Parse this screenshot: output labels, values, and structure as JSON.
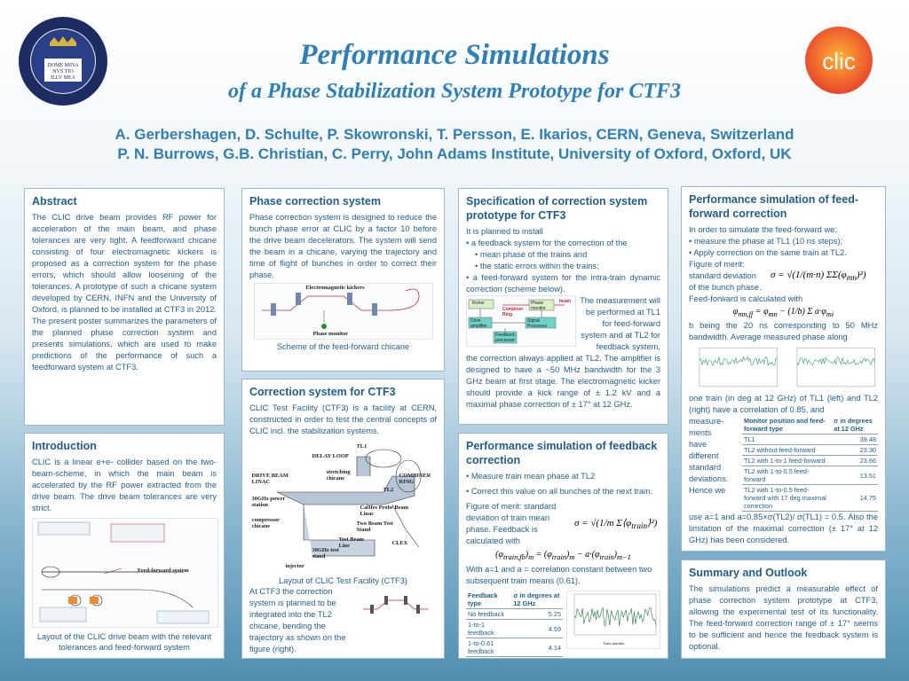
{
  "header": {
    "title": "Performance Simulations",
    "subtitle": "of a Phase Stabilization System Prototype for CTF3",
    "authors_line1": "A. Gerbershagen, D. Schulte, P. Skowronski, T. Persson, E. Ikarios, CERN, Geneva, Switzerland",
    "authors_line2": "P. N. Burrows, G.B. Christian, C. Perry, John Adams Institute, University of Oxford, Oxford, UK",
    "logo_text": "clic",
    "seal_text": "DOMI NVS ILLV MINA TIO MEA"
  },
  "abstract": {
    "heading": "Abstract",
    "text": "The CLIC drive beam provides RF power for acceleration of the main beam, and phase tolerances are very tight. A feedforward chicane consisting of four electromagnetic kickers is proposed as a correction system for the phase errors, which should allow loosening of the tolerances. A prototype of such a chicane system developed by CERN, INFN and the University of Oxford, is planned to be installed at CTF3 in 2012. The present poster summarizes the parameters of the planned phase correction system and presents simulations, which are used to make predictions of the performance of such a feedforward system at CTF3."
  },
  "introduction": {
    "heading": "Introduction",
    "text": "CLIC is a linear e+e- collider based on the two-beam-scheme, in which the main beam is accelerated by the RF power extracted from the drive beam. The drive beam tolerances are very strict.",
    "figure_label": "Feed-forward system",
    "caption": "Layout of the CLIC drive beam with the relevant tolerances and feed-forward system"
  },
  "phase_correction": {
    "heading": "Phase correction system",
    "text": "Phase correction system is designed to reduce the bunch phase error at CLIC by a factor 10 before the drive beam decelerators. The system will send the beam in a chicane, varying the trajectory and time of flight of bunches in order to correct their phase.",
    "fig_label_kickers": "Electromagnetic kickers",
    "fig_label_monitor": "Phase monitor",
    "caption": "Scheme of the feed-forward chicane"
  },
  "correction_ctf3": {
    "heading": "Correction system for CTF3",
    "text": "CLIC Test Facility (CTF3) is a facility at CERN, constructed in order to test the central concepts of CLIC incl. the stabilization systems.",
    "caption": "Layout of CLIC Test Facility (CTF3)",
    "text2": "At CTF3 the correction system is planned to be integrated into the TL2 chicane, bending the trajectory as shown on the figure (right).",
    "fig_labels": [
      "TL1",
      "DELAY LOOP",
      "DRIVE BEAM LINAC",
      "30GHz power station",
      "compressor chicane",
      "TL2",
      "COMBINER RING",
      "CalIfes Probe Beam Linac",
      "Two Beam Test Stand",
      "Test Beam Line",
      "30GHz test stand",
      "CLEX",
      "injector",
      "stretching chicane"
    ]
  },
  "specification": {
    "heading": "Specification of correction system prototype for CTF3",
    "intro": "It is planned to install",
    "b1": "• a feedback system for the correction of the",
    "b1a": "• mean phase of the trains and",
    "b1b": "• the static errors within the trains;",
    "b2": "• a feed-forward system for the intra-train dynamic correction (scheme below).",
    "side_text": "The measurement will be performed at TL1 for feed-forward system and at TL2 for feedback system,",
    "text": "the correction always applied at TL2. The amplifier is designed to have a ~50 MHz bandwidth for the 3 GHz beam at first stage. The electromagnetic kicker should provide a kick range of ± 1.2 kV and a maximal phase correction of ± 17° at 12 GHz.",
    "diagram": {
      "kicker": "Kicker",
      "phase_monitor": "Phase monitor",
      "ring": "Combiner Ring",
      "beam": "beam",
      "amp": "Drive amplifier",
      "signal": "Signal Processor",
      "fb": "Feedback processor"
    }
  },
  "feedback": {
    "heading": "Performance simulation of feedback correction",
    "b1": "• Measure train mean phase at TL2",
    "b2": "• Correct this value on all bunches of the next train.",
    "fom": "Figure of merit: standard deviation of train mean phase. Feedback is calculated with",
    "after": "With a=1 and a = correlation constant between two subsequent train means (0.61).",
    "table": {
      "headers": [
        "Feedback type",
        "σ in degrees at 12 GHz"
      ],
      "rows": [
        [
          "No feedback",
          "5.25"
        ],
        [
          "1-to-1 feedback",
          "4.59"
        ],
        [
          "1-to-0.61 feedback",
          "4.14"
        ]
      ]
    },
    "chart_xlabel": "Train number"
  },
  "feedforward": {
    "heading": "Performance simulation of feed-forward correction",
    "text1": "In order to simulate the feed-forward we:",
    "b1": "• measure the phase at TL1 (10 ns steps);",
    "b2": "• Apply correction on the same train at TL2.",
    "fom_line1": "Figure of merit:",
    "fom_line2": "standard deviation",
    "fom_line3": "of the bunch phase.",
    "calc": "Feed-forward is calculated with",
    "b_text": "b being the 20 ns corresponding to 50 MHz bandwidth. Average measured phase along",
    "text2": "one train (in deg at 12 GHz) of TL1 (left) and TL2 (right) have a correlation of 0.85, and",
    "side_words": [
      "measure-",
      "ments",
      "have",
      "different",
      "standard",
      "deviations.",
      "Hence we"
    ],
    "text3": "use a=1 and a=0.85×σ(TL2)/ σ(TL1) = 0.5. Also the limitation of the maximal correction (± 17° at 12 GHz) has been considered.",
    "table": {
      "headers": [
        "Monitor position and feed-forward type",
        "σ in degrees at 12 GHz"
      ],
      "rows": [
        [
          "TL1",
          "39.48"
        ],
        [
          "TL2 without feed-forward",
          "23.30"
        ],
        [
          "TL2 with 1-to-1 feed-forward",
          "23.66"
        ],
        [
          "TL2 with 1-to-0.5 feed-forward",
          "13.51"
        ],
        [
          "TL2 with 1-to-0.5 feed-forward with 17 deg maximal correction",
          "14.75"
        ]
      ]
    }
  },
  "summary": {
    "heading": "Summary and Outlook",
    "text": "The simulations predict a measurable effect of phase correction system prototype at CTF3, allowing the experimental test of its functionality. The feed-forward correction range of ± 17° seems to be sufficient and hence the feedback system is optional."
  },
  "colors": {
    "accent": "#2f7fb7",
    "heading": "#1f5d8f",
    "logo": "#e8452a"
  }
}
